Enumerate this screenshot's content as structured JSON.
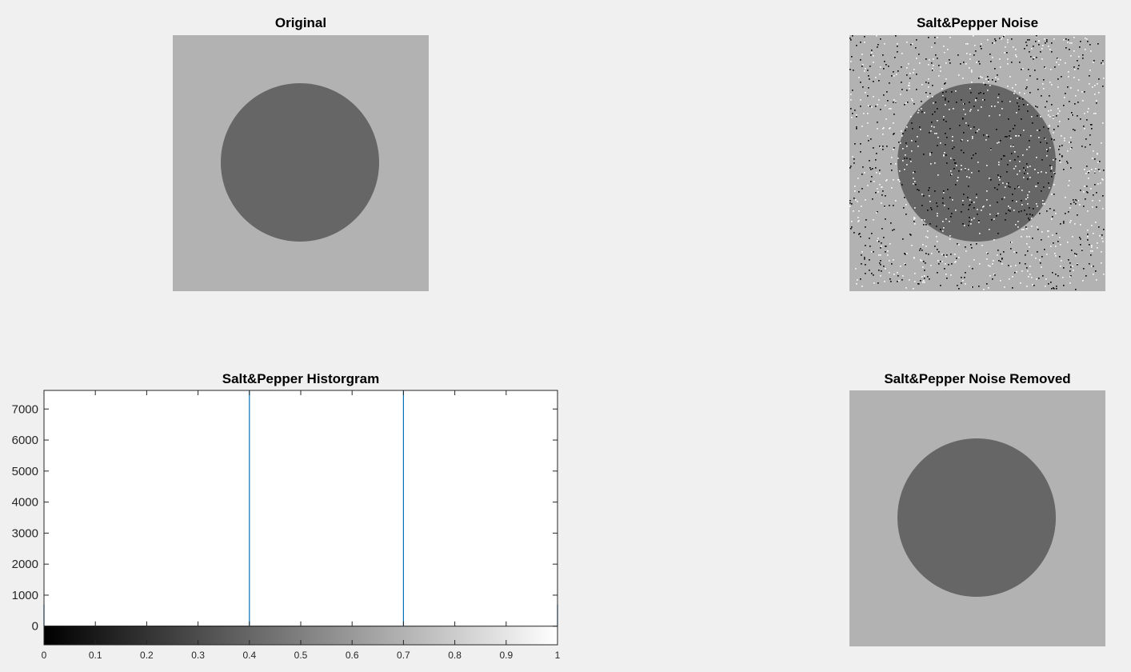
{
  "panels": {
    "original": {
      "title": "Original",
      "background": "#b2b2b2",
      "disk": "#666666"
    },
    "noisy": {
      "title": "Salt&Pepper Noise",
      "background": "#b2b2b2",
      "disk": "#666666"
    },
    "histogram": {
      "title": "Salt&Pepper Historgram"
    },
    "removed": {
      "title": "Salt&Pepper Noise Removed",
      "background": "#b2b2b2",
      "disk": "#666666"
    }
  },
  "chart_data": {
    "type": "bar",
    "title": "Salt&Pepper Historgram",
    "xlabel": "",
    "ylabel": "",
    "xlim": [
      0,
      1
    ],
    "ylim": [
      -600,
      7600
    ],
    "x_ticks": [
      "0",
      "0.1",
      "0.2",
      "0.3",
      "0.4",
      "0.5",
      "0.6",
      "0.7",
      "0.8",
      "0.9",
      "1"
    ],
    "y_ticks": [
      "0",
      "1000",
      "2000",
      "3000",
      "4000",
      "5000",
      "6000",
      "7000"
    ],
    "x": [
      0,
      0.4,
      0.7,
      1
    ],
    "values": [
      700,
      7600,
      7600,
      700
    ],
    "bar_color": "#0072bd",
    "colorbar": "grayscale 0 to 1",
    "grid": false
  }
}
